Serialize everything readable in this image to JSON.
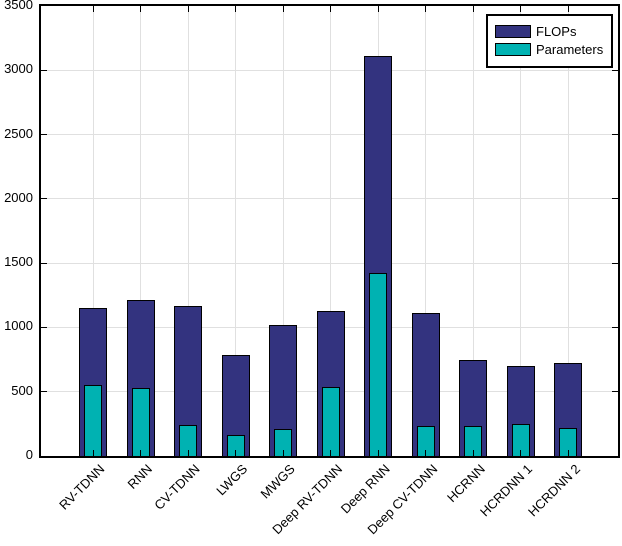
{
  "chart_data": {
    "type": "bar",
    "mode": "overlay",
    "title": "",
    "xlabel": "",
    "ylabel": "",
    "categories": [
      "RV-TDNN",
      "RNN",
      "CV-TDNN",
      "LWGS",
      "MWGS",
      "Deep RV-TDNN",
      "Deep RNN",
      "Deep CV-TDNN",
      "HCRNN",
      "HCRDNN 1",
      "HCRDNN 2"
    ],
    "series": [
      {
        "name": "FLOPs",
        "color": "#33337F",
        "values": [
          1150,
          1210,
          1170,
          785,
          1020,
          1125,
          3110,
          1110,
          745,
          700,
          725
        ]
      },
      {
        "name": "Parameters",
        "color": "#00B2B2",
        "values": [
          550,
          530,
          240,
          165,
          210,
          535,
          1420,
          230,
          230,
          250,
          220
        ]
      }
    ],
    "ylim": [
      0,
      3500
    ],
    "yticks": [
      0,
      500,
      1000,
      1500,
      2000,
      2500,
      3000,
      3500
    ],
    "grid": true,
    "legend_position": "top-right",
    "axis_color": "#000000",
    "grid_color": "#E0E0E0",
    "background_color": "#FFFFFF"
  }
}
